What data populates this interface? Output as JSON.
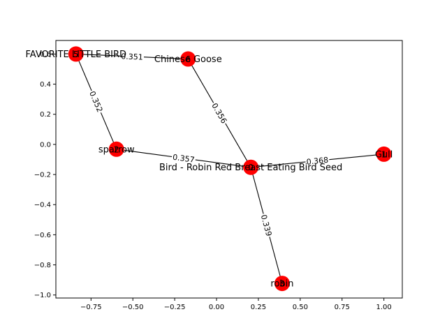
{
  "chart_data": {
    "type": "network",
    "xlim": [
      -0.96,
      1.11
    ],
    "ylim": [
      -1.02,
      0.69
    ],
    "x_ticks": [
      -0.75,
      -0.5,
      -0.25,
      0.0,
      0.25,
      0.5,
      0.75,
      1.0
    ],
    "x_tick_labels": [
      "−0.75",
      "−0.50",
      "−0.25",
      "0.00",
      "0.25",
      "0.50",
      "0.75",
      "1.00"
    ],
    "y_ticks": [
      0.6,
      0.4,
      0.2,
      0.0,
      -0.2,
      -0.4,
      -0.6,
      -0.8,
      -1.0
    ],
    "y_tick_labels": [
      "0.6",
      "0.4",
      "0.2",
      "0.0",
      "−0.2",
      "−0.4",
      "−0.6",
      "−0.8",
      "−1.0"
    ],
    "nodes": [
      {
        "id": "0",
        "label": "Bird - Robin Red Breast Eating Bird Seed",
        "x": 0.205,
        "y": -0.152
      },
      {
        "id": "1",
        "label": "Gull",
        "x": 1.0,
        "y": -0.065
      },
      {
        "id": "2",
        "label": "sparrow",
        "x": -0.598,
        "y": -0.032
      },
      {
        "id": "3",
        "label": "robin",
        "x": 0.392,
        "y": -0.923
      },
      {
        "id": "5",
        "label": "FAVORITE LITTLE BIRD",
        "x": -0.84,
        "y": 0.6
      },
      {
        "id": "6",
        "label": "Chinese Goose",
        "x": -0.17,
        "y": 0.567
      }
    ],
    "edges": [
      {
        "source": "5",
        "target": "6",
        "weight": "0.351"
      },
      {
        "source": "5",
        "target": "2",
        "weight": "0.352"
      },
      {
        "source": "6",
        "target": "0",
        "weight": "0.356"
      },
      {
        "source": "2",
        "target": "0",
        "weight": "0.357"
      },
      {
        "source": "0",
        "target": "1",
        "weight": "0.368"
      },
      {
        "source": "0",
        "target": "3",
        "weight": "0.339"
      }
    ]
  }
}
